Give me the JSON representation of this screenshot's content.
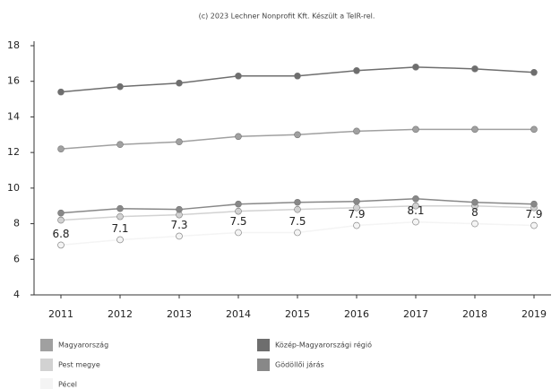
{
  "chart_data": {
    "type": "line",
    "title": "(c) 2023 Lechner Nonprofit Kft. Készült a TeIR-rel.",
    "categories": [
      "2011",
      "2012",
      "2013",
      "2014",
      "2015",
      "2016",
      "2017",
      "2018",
      "2019"
    ],
    "series": [
      {
        "name": "Magyarország",
        "color": "#a0a0a0",
        "values": [
          12.2,
          12.45,
          12.6,
          12.9,
          13.0,
          13.2,
          13.3,
          13.3,
          13.3
        ]
      },
      {
        "name": "Közép-Magyarországi régió",
        "color": "#6e6e6e",
        "values": [
          15.4,
          15.7,
          15.9,
          16.3,
          16.3,
          16.6,
          16.8,
          16.7,
          16.5
        ]
      },
      {
        "name": "Pest megye",
        "color": "#d2d2d2",
        "values": [
          8.2,
          8.4,
          8.5,
          8.7,
          8.8,
          8.9,
          9.0,
          9.0,
          8.9
        ]
      },
      {
        "name": "Gödöllői járás",
        "color": "#888888",
        "values": [
          8.6,
          8.85,
          8.8,
          9.1,
          9.2,
          9.25,
          9.4,
          9.2,
          9.1
        ]
      },
      {
        "name": "Pécel",
        "color": "#f4f4f4",
        "values": [
          6.8,
          7.1,
          7.3,
          7.5,
          7.5,
          7.9,
          8.1,
          8,
          7.9
        ],
        "data_labels": true
      }
    ],
    "ylim": [
      4,
      18
    ],
    "yticks": [
      4,
      6,
      8,
      10,
      12,
      14,
      16,
      18
    ]
  }
}
